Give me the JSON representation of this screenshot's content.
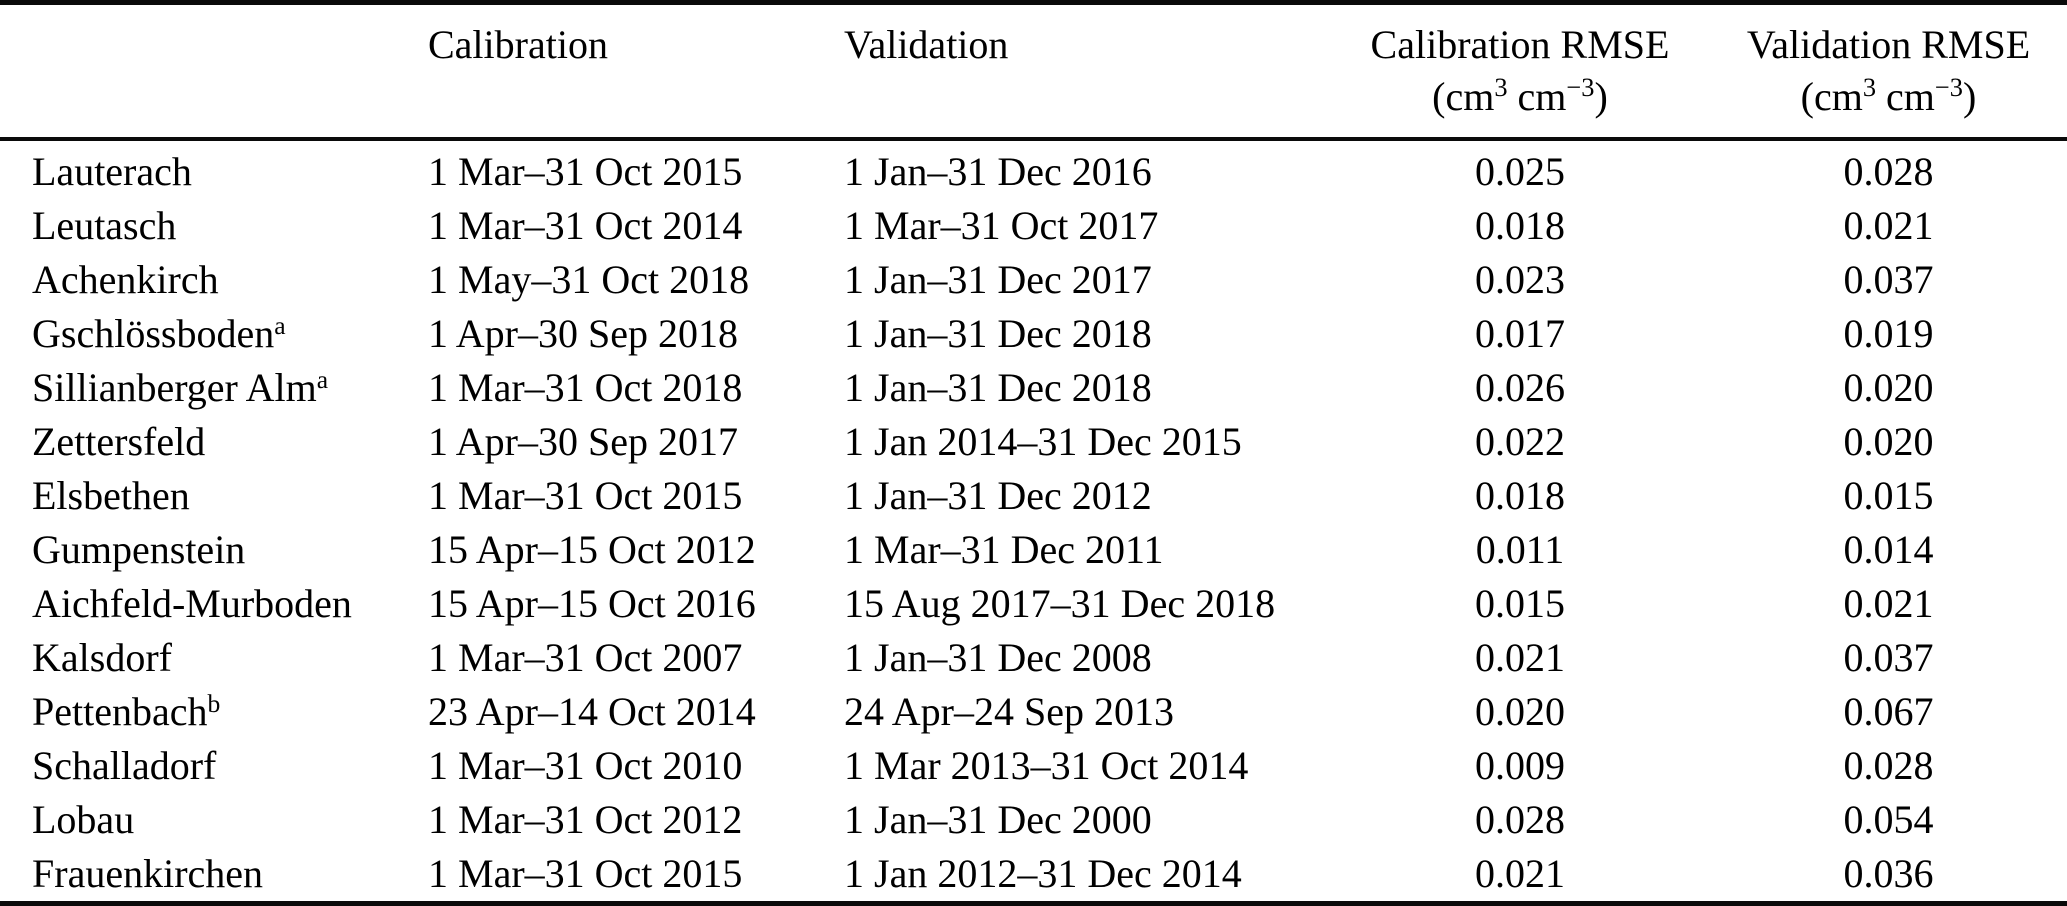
{
  "table": {
    "columns": [
      {
        "key": "site",
        "label": ""
      },
      {
        "key": "calibration",
        "label": "Calibration"
      },
      {
        "key": "validation",
        "label": "Validation"
      },
      {
        "key": "cal_rmse",
        "label": "Calibration RMSE",
        "unit": {
          "open": "(cm",
          "sup1": "3",
          "mid": " cm",
          "sup2": "−3",
          "close": ")"
        }
      },
      {
        "key": "val_rmse",
        "label": "Validation RMSE",
        "unit": {
          "open": "(cm",
          "sup1": "3",
          "mid": " cm",
          "sup2": "−3",
          "close": ")"
        }
      }
    ],
    "rows": [
      {
        "site": "Lauterach",
        "mark": "",
        "calibration": "1 Mar–31 Oct 2015",
        "validation": "1 Jan–31 Dec 2016",
        "cal_rmse": "0.025",
        "val_rmse": "0.028"
      },
      {
        "site": "Leutasch",
        "mark": "",
        "calibration": "1 Mar–31 Oct 2014",
        "validation": "1 Mar–31 Oct 2017",
        "cal_rmse": "0.018",
        "val_rmse": "0.021"
      },
      {
        "site": "Achenkirch",
        "mark": "",
        "calibration": "1 May–31 Oct 2018",
        "validation": "1 Jan–31 Dec 2017",
        "cal_rmse": "0.023",
        "val_rmse": "0.037"
      },
      {
        "site": "Gschlössboden",
        "mark": "a",
        "calibration": "1 Apr–30 Sep 2018",
        "validation": "1 Jan–31 Dec 2018",
        "cal_rmse": "0.017",
        "val_rmse": "0.019"
      },
      {
        "site": "Sillianberger Alm",
        "mark": "a",
        "calibration": "1 Mar–31 Oct 2018",
        "validation": "1 Jan–31 Dec 2018",
        "cal_rmse": "0.026",
        "val_rmse": "0.020"
      },
      {
        "site": "Zettersfeld",
        "mark": "",
        "calibration": "1 Apr–30 Sep 2017",
        "validation": "1 Jan 2014–31 Dec 2015",
        "cal_rmse": "0.022",
        "val_rmse": "0.020"
      },
      {
        "site": "Elsbethen",
        "mark": "",
        "calibration": "1 Mar–31 Oct 2015",
        "validation": "1 Jan–31 Dec 2012",
        "cal_rmse": "0.018",
        "val_rmse": "0.015"
      },
      {
        "site": "Gumpenstein",
        "mark": "",
        "calibration": "15 Apr–15 Oct 2012",
        "validation": "1 Mar–31 Dec 2011",
        "cal_rmse": "0.011",
        "val_rmse": "0.014"
      },
      {
        "site": "Aichfeld-Murboden",
        "mark": "",
        "calibration": "15 Apr–15 Oct 2016",
        "validation": "15 Aug 2017–31 Dec 2018",
        "cal_rmse": "0.015",
        "val_rmse": "0.021"
      },
      {
        "site": "Kalsdorf",
        "mark": "",
        "calibration": "1 Mar–31 Oct 2007",
        "validation": "1 Jan–31 Dec 2008",
        "cal_rmse": "0.021",
        "val_rmse": "0.037"
      },
      {
        "site": "Pettenbach",
        "mark": "b",
        "calibration": "23 Apr–14 Oct 2014",
        "validation": "24 Apr–24 Sep 2013",
        "cal_rmse": "0.020",
        "val_rmse": "0.067"
      },
      {
        "site": "Schalladorf",
        "mark": "",
        "calibration": "1 Mar–31 Oct 2010",
        "validation": "1 Mar 2013–31 Oct 2014",
        "cal_rmse": "0.009",
        "val_rmse": "0.028"
      },
      {
        "site": "Lobau",
        "mark": "",
        "calibration": "1 Mar–31 Oct 2012",
        "validation": "1 Jan–31 Dec 2000",
        "cal_rmse": "0.028",
        "val_rmse": "0.054"
      },
      {
        "site": "Frauenkirchen",
        "mark": "",
        "calibration": "1 Mar–31 Oct 2015",
        "validation": "1 Jan 2012–31 Dec 2014",
        "cal_rmse": "0.021",
        "val_rmse": "0.036"
      }
    ]
  }
}
